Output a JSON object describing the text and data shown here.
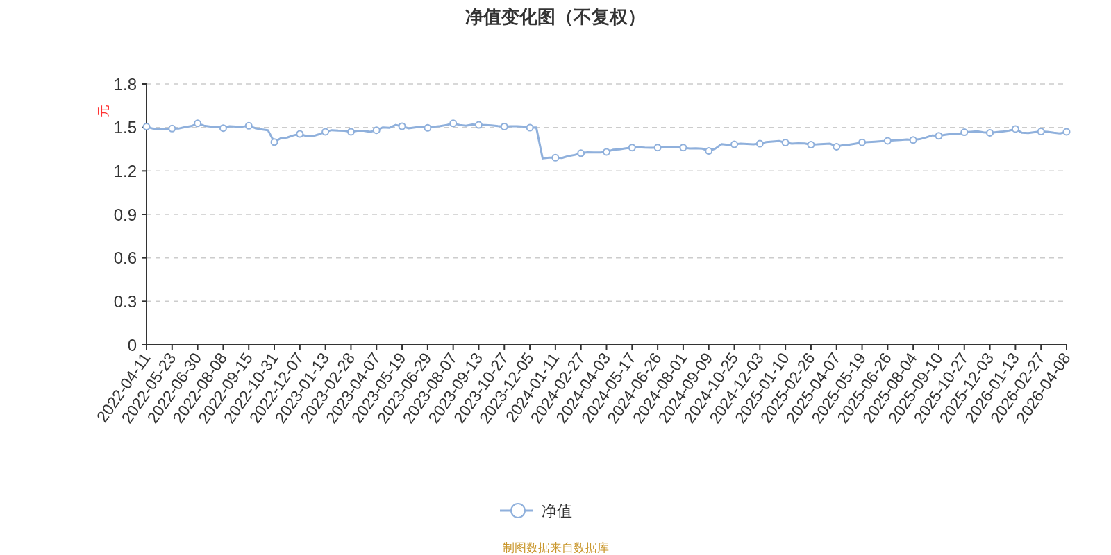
{
  "chart_data": {
    "type": "line",
    "title": "净值变化图（不复权）",
    "ylabel": "元",
    "categories": [
      "2022-04-11",
      null,
      null,
      null,
      "2022-05-23",
      null,
      null,
      null,
      "2022-06-30",
      null,
      null,
      null,
      "2022-08-08",
      null,
      null,
      null,
      "2022-09-15",
      null,
      null,
      null,
      "2022-10-31",
      null,
      null,
      null,
      "2022-12-07",
      null,
      null,
      null,
      "2023-01-13",
      null,
      null,
      null,
      "2023-02-28",
      null,
      null,
      null,
      "2023-04-07",
      null,
      null,
      null,
      "2023-05-19",
      null,
      null,
      null,
      "2023-06-29",
      null,
      null,
      null,
      "2023-08-07",
      null,
      null,
      null,
      "2023-09-13",
      null,
      null,
      null,
      "2023-10-27",
      null,
      null,
      null,
      "2023-12-05",
      null,
      null,
      null,
      "2024-01-11",
      null,
      null,
      null,
      "2024-02-27",
      null,
      null,
      null,
      "2024-04-03",
      null,
      null,
      null,
      "2024-05-17",
      null,
      null,
      null,
      "2024-06-26",
      null,
      null,
      null,
      "2024-08-01",
      null,
      null,
      null,
      "2024-09-09",
      null,
      null,
      null,
      "2024-10-25",
      null,
      null,
      null,
      "2024-12-03",
      null,
      null,
      null,
      "2025-01-10",
      null,
      null,
      null,
      "2025-02-26",
      null,
      null,
      null,
      "2025-04-07",
      null,
      null,
      null,
      "2025-05-19",
      null,
      null,
      null,
      "2025-06-26",
      null,
      null,
      null,
      "2025-08-04",
      null,
      null,
      null,
      "2025-09-10",
      null,
      null,
      null,
      "2025-10-27",
      null,
      null,
      null,
      "2025-12-03",
      null,
      null,
      null,
      "2026-01-13",
      null,
      null,
      null,
      "2026-02-27",
      null,
      null,
      null,
      "2026-04-08"
    ],
    "series": [
      {
        "name": "净值",
        "color": "#8fb0dc",
        "marker": "none",
        "values": [
          1.505,
          1.492,
          1.486,
          1.489,
          1.492,
          1.492,
          1.502,
          1.509,
          1.528,
          1.512,
          1.506,
          1.505,
          1.495,
          1.508,
          1.505,
          1.505,
          1.511,
          1.495,
          1.486,
          1.481,
          1.399,
          1.425,
          1.43,
          1.445,
          1.455,
          1.441,
          1.439,
          1.453,
          1.47,
          1.481,
          1.478,
          1.477,
          1.47,
          1.477,
          1.477,
          1.47,
          1.481,
          1.5,
          1.497,
          1.517,
          1.508,
          1.494,
          1.5,
          1.506,
          1.497,
          1.505,
          1.509,
          1.517,
          1.528,
          1.517,
          1.512,
          1.52,
          1.517,
          1.516,
          1.514,
          1.509,
          1.506,
          1.508,
          1.508,
          1.506,
          1.498,
          1.5,
          1.286,
          1.291,
          1.291,
          1.289,
          1.302,
          1.31,
          1.322,
          1.328,
          1.327,
          1.327,
          1.331,
          1.346,
          1.349,
          1.356,
          1.361,
          1.363,
          1.361,
          1.36,
          1.361,
          1.363,
          1.366,
          1.363,
          1.361,
          1.355,
          1.356,
          1.353,
          1.338,
          1.353,
          1.385,
          1.38,
          1.383,
          1.388,
          1.386,
          1.383,
          1.388,
          1.399,
          1.403,
          1.406,
          1.395,
          1.388,
          1.391,
          1.389,
          1.381,
          1.383,
          1.386,
          1.388,
          1.367,
          1.378,
          1.381,
          1.388,
          1.397,
          1.399,
          1.402,
          1.405,
          1.408,
          1.411,
          1.413,
          1.417,
          1.413,
          1.419,
          1.431,
          1.445,
          1.442,
          1.449,
          1.455,
          1.453,
          1.467,
          1.47,
          1.473,
          1.466,
          1.463,
          1.467,
          1.472,
          1.478,
          1.489,
          1.464,
          1.461,
          1.467,
          1.472,
          1.47,
          1.464,
          1.459,
          1.47
        ]
      },
      {
        "type": "scatter",
        "color": "#8fb0dc",
        "values": [
          1.505,
          null,
          null,
          null,
          1.492,
          null,
          null,
          null,
          1.528,
          null,
          null,
          null,
          1.495,
          null,
          null,
          null,
          1.511,
          null,
          null,
          null,
          1.399,
          null,
          null,
          null,
          1.455,
          null,
          null,
          null,
          1.47,
          null,
          null,
          null,
          1.47,
          null,
          null,
          null,
          1.481,
          null,
          null,
          null,
          1.508,
          null,
          null,
          null,
          1.497,
          null,
          null,
          null,
          1.528,
          null,
          null,
          null,
          1.517,
          null,
          null,
          null,
          1.506,
          null,
          null,
          null,
          1.498,
          null,
          null,
          null,
          1.291,
          null,
          null,
          null,
          1.322,
          null,
          null,
          null,
          1.331,
          null,
          null,
          null,
          1.361,
          null,
          null,
          null,
          1.361,
          null,
          null,
          null,
          1.361,
          null,
          null,
          null,
          1.338,
          null,
          null,
          null,
          1.383,
          null,
          null,
          null,
          1.388,
          null,
          null,
          null,
          1.395,
          null,
          null,
          null,
          1.381,
          null,
          null,
          null,
          1.367,
          null,
          null,
          null,
          1.397,
          null,
          null,
          null,
          1.408,
          null,
          null,
          null,
          1.413,
          null,
          null,
          null,
          1.442,
          null,
          null,
          null,
          1.467,
          null,
          null,
          null,
          1.463,
          null,
          null,
          null,
          1.489,
          null,
          null,
          null,
          1.472,
          null,
          null,
          null,
          1.47
        ]
      }
    ],
    "ylim": [
      0,
      1.8
    ],
    "yticks": [
      0,
      0.3,
      0.6,
      0.9,
      1.2,
      1.5,
      1.8
    ],
    "grid": "y",
    "legend": "bottom",
    "marker": "circle",
    "line_style": "solid",
    "annotations": [
      "制图数据来自数据库"
    ]
  }
}
